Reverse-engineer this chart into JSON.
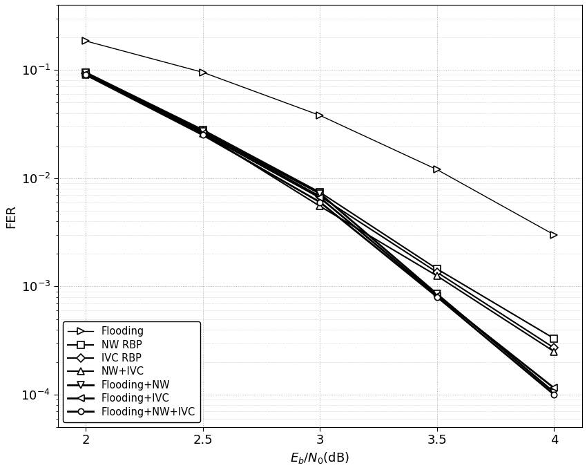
{
  "x": [
    2.0,
    2.5,
    3.0,
    3.5,
    4.0
  ],
  "series": {
    "Flooding": {
      "y": [
        0.185,
        0.095,
        0.038,
        0.012,
        0.003
      ],
      "marker": ">",
      "color": "#000000",
      "linewidth": 1.0,
      "markersize": 7,
      "zorder": 2
    },
    "NW RBP": {
      "y": [
        0.095,
        0.028,
        0.0074,
        0.00145,
        0.00033
      ],
      "marker": "s",
      "color": "#000000",
      "linewidth": 1.5,
      "markersize": 7,
      "zorder": 3
    },
    "IVC RBP": {
      "y": [
        0.093,
        0.027,
        0.0068,
        0.00135,
        0.00027
      ],
      "marker": "D",
      "color": "#000000",
      "linewidth": 1.5,
      "markersize": 6,
      "zorder": 3
    },
    "NW+IVC": {
      "y": [
        0.09,
        0.026,
        0.0055,
        0.00125,
        0.00025
      ],
      "marker": "^",
      "color": "#000000",
      "linewidth": 1.5,
      "markersize": 7,
      "zorder": 3
    },
    "Flooding+NW": {
      "y": [
        0.094,
        0.027,
        0.0072,
        0.00085,
        0.000105
      ],
      "marker": "v",
      "color": "#000000",
      "linewidth": 2.0,
      "markersize": 7,
      "zorder": 4
    },
    "Flooding+IVC": {
      "y": [
        0.092,
        0.026,
        0.0066,
        0.00082,
        0.000115
      ],
      "marker": "<",
      "color": "#000000",
      "linewidth": 2.0,
      "markersize": 7,
      "zorder": 4
    },
    "Flooding+NW+IVC": {
      "y": [
        0.09,
        0.025,
        0.006,
        0.0008,
        0.0001
      ],
      "marker": "o",
      "color": "#000000",
      "linewidth": 2.0,
      "markersize": 6,
      "zorder": 4
    }
  },
  "xlabel": "E_b/N_0(dB)",
  "ylabel": "FER",
  "xlim": [
    1.88,
    4.12
  ],
  "ylim": [
    5e-05,
    0.4
  ],
  "xticks": [
    2.0,
    2.5,
    3.0,
    3.5,
    4.0
  ],
  "yticks_major": [
    0.0001,
    0.001,
    0.01,
    0.1
  ],
  "background_color": "#ffffff",
  "grid_color": "#999999",
  "legend_loc": "lower left",
  "fig_width": 8.5,
  "fig_height": 6.8
}
